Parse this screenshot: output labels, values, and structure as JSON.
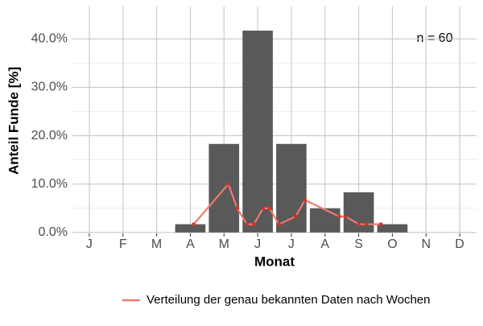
{
  "chart_data": {
    "type": "bar",
    "categories": [
      "J",
      "F",
      "M",
      "A",
      "M",
      "J",
      "J",
      "A",
      "S",
      "O",
      "N",
      "D"
    ],
    "values": [
      0,
      0,
      0,
      1.7,
      18.3,
      41.7,
      18.3,
      5.0,
      8.3,
      1.7,
      0,
      0
    ],
    "color": "#595959",
    "line": {
      "name": "Verteilung der genau bekannten Daten nach Wochen",
      "color": "#f0776e",
      "x": [
        4.1,
        5.13,
        5.39,
        5.68,
        5.89,
        6.16,
        6.35,
        6.63,
        7.13,
        7.4,
        8.42,
        8.61,
        9.0,
        9.23,
        9.66
      ],
      "values": [
        1.7,
        10.0,
        5.0,
        1.7,
        1.7,
        5.0,
        5.0,
        1.7,
        3.3,
        6.7,
        3.3,
        3.3,
        1.7,
        1.7,
        1.7
      ]
    },
    "xlim": [
      0.5,
      12.5
    ],
    "ylim": [
      -0.2,
      46.7
    ],
    "yticks": [
      {
        "value": 0,
        "label": "0.0%"
      },
      {
        "value": 10,
        "label": "10.0%"
      },
      {
        "value": 20,
        "label": "20.0%"
      },
      {
        "value": 30,
        "label": "30.0%"
      },
      {
        "value": 40,
        "label": "40.0%"
      }
    ],
    "xlabel": "Monat",
    "ylabel": "Anteil Funde [%]",
    "annotation": "n = 60",
    "grid": true,
    "legend": "bottom"
  }
}
